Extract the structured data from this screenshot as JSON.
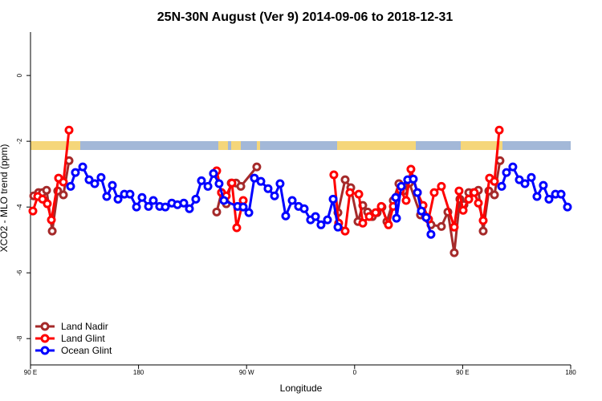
{
  "chart_data": {
    "type": "line",
    "title": "25N-30N August (Ver 9)   2014-09-06 to 2018-12-31",
    "xlabel": "Longitude",
    "ylabel": "XCO2 - MLO trend (ppm)",
    "xlim": [
      90,
      540
    ],
    "ylim": [
      -8.8,
      1.32
    ],
    "xticks": [
      {
        "value": 90,
        "label": "90 E"
      },
      180,
      {
        "value": 270,
        "label": "90 W"
      },
      {
        "value": 360,
        "label": "0"
      },
      {
        "value": 450,
        "label": "90 E"
      },
      {
        "value": 540,
        "label": "180"
      }
    ],
    "yticks": [
      0,
      -2,
      -4,
      -6,
      -8
    ],
    "legend": "bottom-left",
    "series": [
      {
        "name": "Land Nadir",
        "color": "#a52a2a",
        "x": [
          92.7,
          96.7,
          100.0,
          103.4,
          108.1,
          112.7,
          117.4,
          122.1,
          null,
          245.1,
          249.1,
          253.1,
          257.2,
          261.2,
          265.2,
          278.5,
          null,
          346.1,
          352.1,
          356.8,
          362.8,
          366.8,
          370.8,
          374.8,
          378.8,
          382.8,
          386.9,
          392.2,
          396.9,
          400.9,
          405.6,
          414.9,
          418.9,
          423.6,
          432.3,
          437.7,
          443.0,
          447.7,
          451.1,
          455.1,
          459.1,
          463.1,
          467.1,
          471.8,
          476.5,
          481.1
        ],
        "values": [
          -3.66,
          -3.56,
          -3.56,
          -3.49,
          -4.73,
          -3.51,
          -3.63,
          -2.59,
          null,
          -4.15,
          -3.56,
          -3.9,
          -3.27,
          -3.27,
          -3.37,
          -2.78,
          null,
          -4.17,
          -3.17,
          -3.41,
          -4.44,
          -3.95,
          -4.15,
          -4.29,
          -4.17,
          -4.0,
          -4.44,
          -3.8,
          -3.29,
          -3.51,
          -3.27,
          -4.24,
          -4.29,
          -4.54,
          -4.59,
          -4.15,
          -5.39,
          -3.76,
          -3.93,
          -3.56,
          -3.56,
          -3.49,
          -4.73,
          -3.51,
          -3.63,
          -2.59
        ]
      },
      {
        "name": "Land Glint",
        "color": "#ff0000",
        "x": [
          92.0,
          96.0,
          100.0,
          104.0,
          107.4,
          113.4,
          117.4,
          122.1,
          null,
          245.1,
          249.1,
          253.1,
          257.8,
          261.8,
          267.2,
          null,
          342.7,
          346.7,
          352.1,
          356.1,
          363.5,
          366.8,
          372.2,
          377.5,
          382.2,
          388.2,
          392.2,
          398.2,
          402.9,
          406.9,
          412.3,
          417.0,
          421.6,
          426.3,
          432.3,
          443.0,
          447.0,
          450.4,
          455.1,
          459.7,
          463.1,
          467.1,
          472.4,
          476.5,
          480.5
        ],
        "values": [
          -4.12,
          -3.68,
          -3.76,
          -3.9,
          -4.39,
          -3.12,
          -3.24,
          -1.66,
          null,
          -2.9,
          -3.56,
          -3.66,
          -3.27,
          -4.63,
          -3.8,
          null,
          -3.02,
          -4.49,
          -4.73,
          -3.56,
          -3.61,
          -4.49,
          -4.29,
          -4.17,
          -3.98,
          -4.54,
          -3.98,
          -3.49,
          -3.8,
          -2.85,
          -3.56,
          -3.95,
          -4.37,
          -3.56,
          -3.37,
          -4.61,
          -3.51,
          -4.1,
          -3.76,
          -3.56,
          -3.88,
          -4.41,
          -3.12,
          -3.22,
          -1.66
        ]
      },
      {
        "name": "Ocean Glint",
        "color": "#0000ff",
        "x": [
          123.4,
          127.4,
          133.5,
          138.8,
          143.5,
          148.8,
          153.5,
          158.2,
          162.9,
          168.2,
          172.9,
          178.3,
          182.9,
          188.3,
          192.3,
          197.6,
          202.3,
          207.7,
          212.4,
          217.7,
          222.4,
          227.7,
          232.4,
          237.8,
          242.4,
          247.1,
          251.1,
          262.5,
          267.2,
          271.9,
          276.5,
          281.9,
          287.9,
          293.3,
          297.9,
          302.6,
          308.0,
          313.3,
          318.0,
          323.3,
          327.4,
          332.0,
          337.4,
          342.1,
          346.1,
          null,
          394.2,
          394.9,
          398.9,
          404.2,
          408.9,
          412.3,
          415.6,
          419.6,
          423.6,
          null,
          482.5,
          486.5,
          491.8,
          497.2,
          501.9,
          507.2,
          511.9,
          517.2,
          521.9,
          527.3,
          532.0,
          537.3
        ],
        "values": [
          -3.37,
          -2.95,
          -2.78,
          -3.17,
          -3.29,
          -3.1,
          -3.68,
          -3.34,
          -3.76,
          -3.61,
          -3.61,
          -4.0,
          -3.71,
          -3.98,
          -3.8,
          -3.98,
          -4.0,
          -3.88,
          -3.93,
          -3.88,
          -4.05,
          -3.76,
          -3.2,
          -3.37,
          -2.98,
          -3.29,
          -3.8,
          -3.98,
          -4.0,
          -4.17,
          -3.12,
          -3.22,
          -3.44,
          -3.66,
          -3.29,
          -4.27,
          -3.8,
          -3.98,
          -4.05,
          -4.39,
          -4.29,
          -4.54,
          -4.39,
          -3.76,
          -4.61,
          null,
          -3.71,
          -4.34,
          -3.37,
          -3.17,
          -3.15,
          -3.56,
          -4.12,
          -4.32,
          -4.83,
          null,
          -3.37,
          -2.95,
          -2.78,
          -3.17,
          -3.29,
          -3.1,
          -3.68,
          -3.34,
          -3.76,
          -3.61,
          -3.61,
          -4.0
        ]
      }
    ]
  }
}
